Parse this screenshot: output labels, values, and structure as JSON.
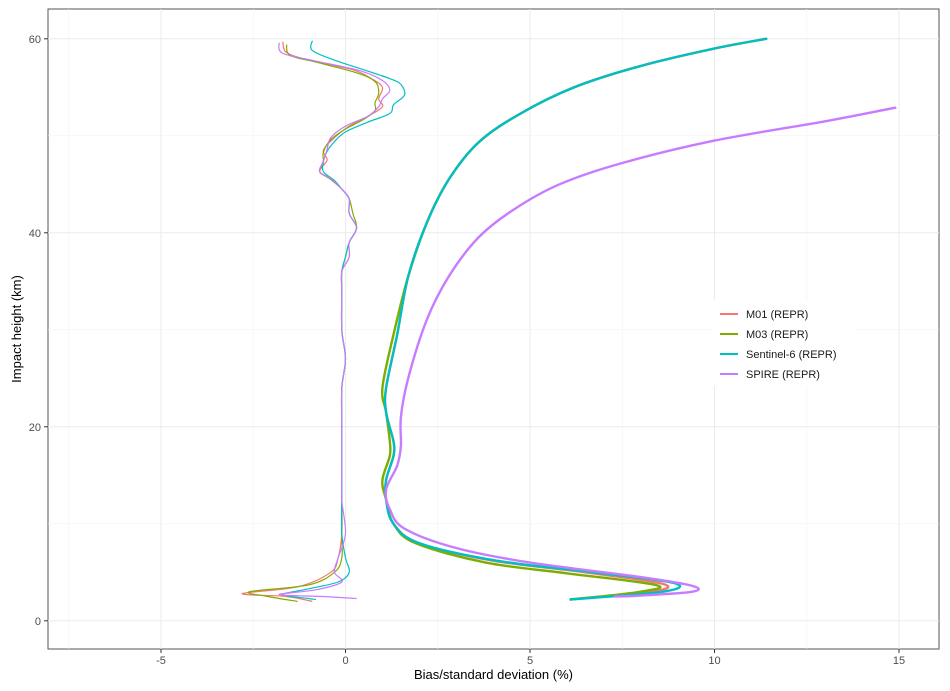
{
  "chart_data": {
    "type": "line",
    "xlabel": "Bias/standard deviation (%)",
    "ylabel": "Impact height (km)",
    "xlim": [
      -8,
      16
    ],
    "ylim": [
      -3,
      63
    ],
    "x_ticks": [
      -5,
      0,
      5,
      10,
      15
    ],
    "y_ticks": [
      0,
      20,
      40,
      60
    ],
    "grid": true,
    "legend_position": "right",
    "series": [
      {
        "name": "M01 (REPR)",
        "color": "#F8766D",
        "bias": [
          [
            -1.7,
            59.7
          ],
          [
            -1.6,
            58.6
          ],
          [
            -1.0,
            57.8
          ],
          [
            0.2,
            56.8
          ],
          [
            0.7,
            55.9
          ],
          [
            1.0,
            55.0
          ],
          [
            0.9,
            53.8
          ],
          [
            1.0,
            53.0
          ],
          [
            0.6,
            52.0
          ],
          [
            0.1,
            51.0
          ],
          [
            -0.3,
            49.8
          ],
          [
            -0.6,
            48.5
          ],
          [
            -0.5,
            47.5
          ],
          [
            -0.7,
            46.3
          ],
          [
            -0.4,
            45.6
          ],
          [
            -0.1,
            44.5
          ],
          [
            0.1,
            43.5
          ],
          [
            0.1,
            42.0
          ],
          [
            0.3,
            40.5
          ],
          [
            0.1,
            39.0
          ],
          [
            0.1,
            37.5
          ],
          [
            -0.1,
            36.0
          ],
          [
            -0.1,
            34.0
          ],
          [
            -0.1,
            30.0
          ],
          [
            0.0,
            27.0
          ],
          [
            -0.1,
            24.0
          ],
          [
            -0.1,
            20.0
          ],
          [
            -0.1,
            16.0
          ],
          [
            -0.1,
            12.5
          ],
          [
            -0.1,
            9.0
          ],
          [
            -0.2,
            6.5
          ],
          [
            -0.4,
            5.0
          ],
          [
            -1.3,
            3.5
          ],
          [
            -2.8,
            2.8
          ],
          [
            -1.6,
            2.5
          ],
          [
            -0.9,
            2.0
          ]
        ],
        "std": [
          [
            11.4,
            60.0
          ],
          [
            10.0,
            59.0
          ],
          [
            8.0,
            57.2
          ],
          [
            6.2,
            55.0
          ],
          [
            4.7,
            52.2
          ],
          [
            3.6,
            49.3
          ],
          [
            2.8,
            45.5
          ],
          [
            2.2,
            41.0
          ],
          [
            1.7,
            35.5
          ],
          [
            1.4,
            29.5
          ],
          [
            1.1,
            24.0
          ],
          [
            1.1,
            21.5
          ],
          [
            1.3,
            18.5
          ],
          [
            1.3,
            17.0
          ],
          [
            1.1,
            14.5
          ],
          [
            1.1,
            12.5
          ],
          [
            1.3,
            10.0
          ],
          [
            2.0,
            8.0
          ],
          [
            4.0,
            6.2
          ],
          [
            6.5,
            5.0
          ],
          [
            8.6,
            3.8
          ],
          [
            8.3,
            3.0
          ],
          [
            6.1,
            2.2
          ]
        ]
      },
      {
        "name": "M03 (REPR)",
        "color": "#7CAE00",
        "bias": [
          [
            -1.6,
            59.4
          ],
          [
            -1.5,
            58.3
          ],
          [
            -0.8,
            57.6
          ],
          [
            0.3,
            56.5
          ],
          [
            0.8,
            55.6
          ],
          [
            0.9,
            54.4
          ],
          [
            0.8,
            53.4
          ],
          [
            0.8,
            52.6
          ],
          [
            0.5,
            51.7
          ],
          [
            0.0,
            50.7
          ],
          [
            -0.4,
            49.6
          ],
          [
            -0.6,
            48.3
          ],
          [
            -0.6,
            47.2
          ],
          [
            -0.7,
            46.3
          ],
          [
            -0.4,
            45.5
          ],
          [
            -0.1,
            44.5
          ],
          [
            0.1,
            43.5
          ],
          [
            0.2,
            42.0
          ],
          [
            0.3,
            40.5
          ],
          [
            0.1,
            39.0
          ],
          [
            0.0,
            37.5
          ],
          [
            -0.1,
            36.0
          ],
          [
            -0.1,
            34.0
          ],
          [
            -0.1,
            30.0
          ],
          [
            0.0,
            27.0
          ],
          [
            -0.1,
            24.0
          ],
          [
            -0.1,
            20.0
          ],
          [
            -0.1,
            16.0
          ],
          [
            -0.1,
            12.5
          ],
          [
            -0.1,
            9.0
          ],
          [
            -0.1,
            6.5
          ],
          [
            -0.3,
            5.0
          ],
          [
            -1.0,
            3.7
          ],
          [
            -2.6,
            3.0
          ],
          [
            -2.1,
            2.5
          ],
          [
            -1.3,
            2.0
          ]
        ],
        "std": [
          [
            11.4,
            60.0
          ],
          [
            10.0,
            59.0
          ],
          [
            8.0,
            57.2
          ],
          [
            6.2,
            55.0
          ],
          [
            4.7,
            52.2
          ],
          [
            3.6,
            49.3
          ],
          [
            2.8,
            45.5
          ],
          [
            2.2,
            41.0
          ],
          [
            1.7,
            35.5
          ],
          [
            1.3,
            29.5
          ],
          [
            1.0,
            24.0
          ],
          [
            1.1,
            21.5
          ],
          [
            1.2,
            18.5
          ],
          [
            1.2,
            17.0
          ],
          [
            1.0,
            14.5
          ],
          [
            1.1,
            12.5
          ],
          [
            1.3,
            10.0
          ],
          [
            1.9,
            8.0
          ],
          [
            3.8,
            6.0
          ],
          [
            6.0,
            4.9
          ],
          [
            8.4,
            3.7
          ],
          [
            8.0,
            3.0
          ],
          [
            6.1,
            2.2
          ]
        ]
      },
      {
        "name": "Sentinel-6 (REPR)",
        "color": "#00BFC4",
        "bias": [
          [
            -0.9,
            59.8
          ],
          [
            -0.9,
            58.8
          ],
          [
            -0.3,
            57.8
          ],
          [
            0.5,
            56.8
          ],
          [
            1.2,
            55.9
          ],
          [
            1.5,
            55.3
          ],
          [
            1.6,
            54.2
          ],
          [
            1.3,
            53.2
          ],
          [
            1.2,
            52.3
          ],
          [
            0.6,
            51.4
          ],
          [
            0.0,
            50.4
          ],
          [
            -0.3,
            49.4
          ],
          [
            -0.5,
            48.4
          ],
          [
            -0.6,
            47.3
          ],
          [
            -0.6,
            46.3
          ],
          [
            -0.3,
            45.4
          ],
          [
            -0.1,
            44.5
          ],
          [
            0.1,
            43.5
          ],
          [
            0.1,
            42.0
          ],
          [
            0.3,
            40.5
          ],
          [
            0.1,
            39.0
          ],
          [
            0.0,
            37.5
          ],
          [
            -0.1,
            36.0
          ],
          [
            -0.1,
            34.0
          ],
          [
            -0.1,
            30.0
          ],
          [
            0.0,
            27.0
          ],
          [
            -0.1,
            24.0
          ],
          [
            -0.1,
            20.0
          ],
          [
            -0.1,
            16.0
          ],
          [
            -0.1,
            12.5
          ],
          [
            -0.1,
            9.0
          ],
          [
            0.0,
            6.5
          ],
          [
            0.1,
            5.0
          ],
          [
            -0.2,
            4.0
          ],
          [
            -1.0,
            3.3
          ],
          [
            -1.7,
            2.7
          ],
          [
            -1.0,
            2.3
          ],
          [
            -0.8,
            2.2
          ]
        ],
        "std": [
          [
            11.4,
            60.0
          ],
          [
            10.0,
            59.0
          ],
          [
            8.0,
            57.2
          ],
          [
            6.2,
            55.0
          ],
          [
            4.7,
            52.2
          ],
          [
            3.6,
            49.3
          ],
          [
            2.8,
            45.5
          ],
          [
            2.2,
            41.0
          ],
          [
            1.7,
            35.5
          ],
          [
            1.4,
            29.5
          ],
          [
            1.1,
            24.0
          ],
          [
            1.1,
            21.5
          ],
          [
            1.3,
            18.5
          ],
          [
            1.3,
            17.0
          ],
          [
            1.1,
            14.5
          ],
          [
            1.1,
            12.5
          ],
          [
            1.3,
            10.0
          ],
          [
            2.0,
            8.0
          ],
          [
            4.1,
            6.2
          ],
          [
            6.7,
            5.0
          ],
          [
            8.9,
            3.9
          ],
          [
            8.6,
            3.0
          ],
          [
            6.1,
            2.2
          ]
        ]
      },
      {
        "name": "SPIRE (REPR)",
        "color": "#C77CFF",
        "bias": [
          [
            -1.8,
            59.6
          ],
          [
            -1.7,
            58.5
          ],
          [
            -0.8,
            57.7
          ],
          [
            0.4,
            56.7
          ],
          [
            1.0,
            55.7
          ],
          [
            1.2,
            54.7
          ],
          [
            1.0,
            53.8
          ],
          [
            0.9,
            53.0
          ],
          [
            0.6,
            52.0
          ],
          [
            0.0,
            51.0
          ],
          [
            -0.4,
            49.8
          ],
          [
            -0.5,
            48.6
          ],
          [
            -0.6,
            47.4
          ],
          [
            -0.7,
            46.3
          ],
          [
            -0.4,
            45.6
          ],
          [
            -0.1,
            44.5
          ],
          [
            0.1,
            43.5
          ],
          [
            0.1,
            42.0
          ],
          [
            0.3,
            40.5
          ],
          [
            0.1,
            39.0
          ],
          [
            0.1,
            37.5
          ],
          [
            -0.1,
            36.0
          ],
          [
            -0.1,
            34.0
          ],
          [
            -0.1,
            30.0
          ],
          [
            0.0,
            27.0
          ],
          [
            -0.1,
            24.0
          ],
          [
            -0.1,
            20.0
          ],
          [
            -0.1,
            16.0
          ],
          [
            -0.1,
            12.5
          ],
          [
            0.0,
            9.0
          ],
          [
            -0.2,
            6.5
          ],
          [
            -0.3,
            5.0
          ],
          [
            -0.1,
            4.0
          ],
          [
            -0.8,
            3.2
          ],
          [
            -1.8,
            2.7
          ],
          [
            -0.6,
            2.5
          ],
          [
            0.3,
            2.3
          ]
        ],
        "std": [
          [
            14.9,
            52.9
          ],
          [
            13.0,
            51.5
          ],
          [
            10.0,
            49.5
          ],
          [
            7.5,
            47.2
          ],
          [
            5.8,
            45.0
          ],
          [
            4.6,
            42.5
          ],
          [
            3.6,
            39.5
          ],
          [
            2.8,
            35.5
          ],
          [
            2.2,
            31.0
          ],
          [
            1.7,
            25.0
          ],
          [
            1.5,
            21.0
          ],
          [
            1.5,
            18.0
          ],
          [
            1.4,
            16.0
          ],
          [
            1.1,
            13.5
          ],
          [
            1.2,
            11.5
          ],
          [
            1.6,
            9.5
          ],
          [
            3.0,
            7.5
          ],
          [
            5.0,
            6.0
          ],
          [
            8.0,
            4.5
          ],
          [
            9.4,
            3.6
          ],
          [
            9.4,
            3.0
          ],
          [
            8.0,
            2.6
          ],
          [
            7.3,
            2.5
          ]
        ]
      }
    ]
  }
}
